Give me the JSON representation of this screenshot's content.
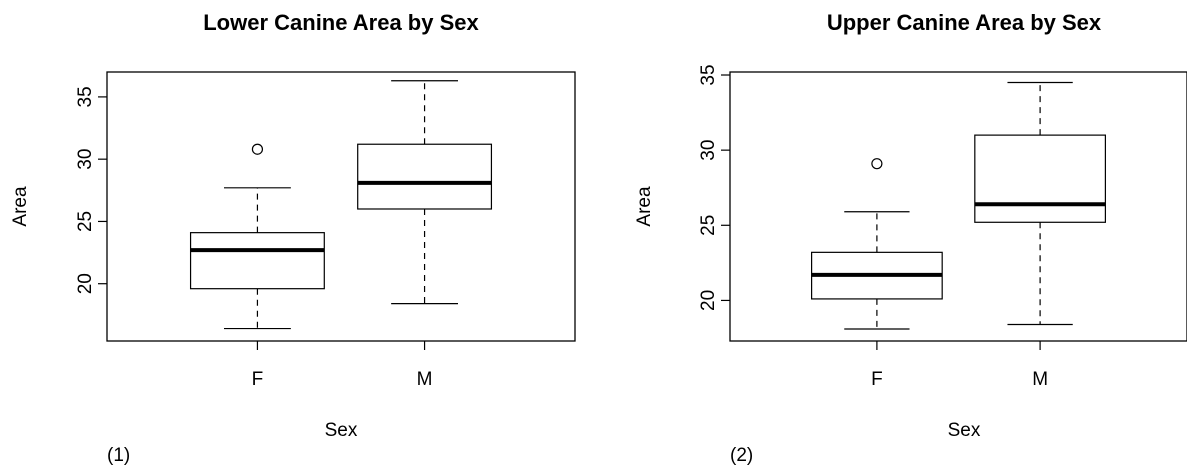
{
  "chart_data": [
    {
      "type": "box",
      "panel_label": "(1)",
      "title": "Lower Canine Area by Sex",
      "xlabel": "Sex",
      "ylabel": "Area",
      "categories": [
        "F",
        "M"
      ],
      "yticks": [
        20,
        25,
        30,
        35
      ],
      "ylim": [
        15.4,
        37.0
      ],
      "boxes": [
        {
          "category": "F",
          "whisker_low": 16.4,
          "q1": 19.6,
          "median": 22.7,
          "q3": 24.1,
          "whisker_high": 27.7,
          "outliers": [
            30.8
          ]
        },
        {
          "category": "M",
          "whisker_low": 18.4,
          "q1": 26.0,
          "median": 28.1,
          "q3": 31.2,
          "whisker_high": 36.3,
          "outliers": []
        }
      ]
    },
    {
      "type": "box",
      "panel_label": "(2)",
      "title": "Upper Canine Area by Sex",
      "xlabel": "Sex",
      "ylabel": "Area",
      "categories": [
        "F",
        "M"
      ],
      "yticks": [
        20,
        25,
        30,
        35
      ],
      "ylim": [
        17.3,
        35.2
      ],
      "boxes": [
        {
          "category": "F",
          "whisker_low": 18.1,
          "q1": 20.1,
          "median": 21.7,
          "q3": 23.2,
          "whisker_high": 25.9,
          "outliers": [
            29.1
          ]
        },
        {
          "category": "M",
          "whisker_low": 18.4,
          "q1": 25.2,
          "median": 26.4,
          "q3": 31.0,
          "whisker_high": 34.5,
          "outliers": []
        }
      ]
    }
  ]
}
